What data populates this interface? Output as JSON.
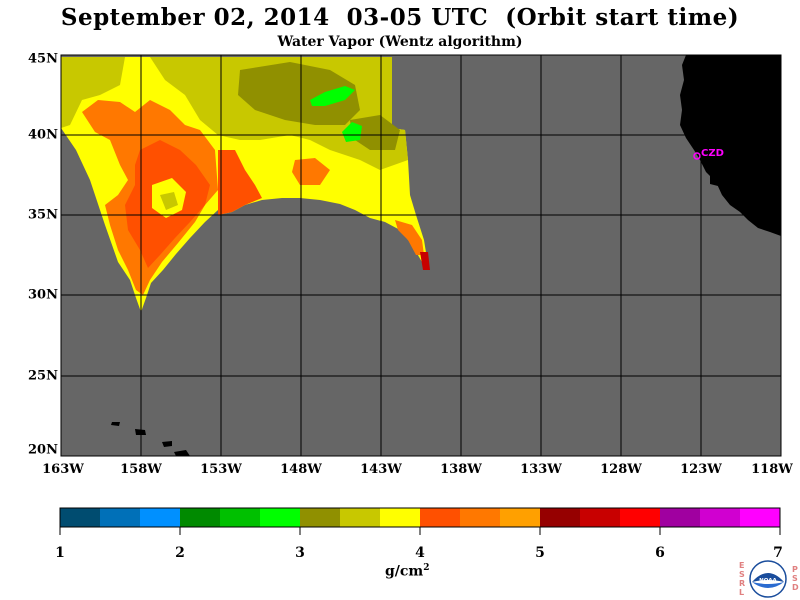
{
  "header": {
    "title": "September 02, 2014  03-05 UTC  (Orbit start time)",
    "subtitle": "Water Vapor (Wentz algorithm)"
  },
  "map": {
    "lat_labels": [
      "45N",
      "40N",
      "35N",
      "30N",
      "25N",
      "20N"
    ],
    "lon_labels": [
      "163W",
      "158W",
      "153W",
      "148W",
      "143W",
      "138W",
      "133W",
      "128W",
      "123W",
      "118W"
    ],
    "lat_range": [
      20,
      45
    ],
    "lon_range": [
      -163,
      -118
    ],
    "ocean_color": "#666666",
    "land_color": "#000000",
    "grid_color": "#000000",
    "station_label": "CZD",
    "station_color": "#ff00ff"
  },
  "colorbar": {
    "colors": [
      "#004c70",
      "#0070b8",
      "#0090ff",
      "#008a00",
      "#00c000",
      "#00ff00",
      "#909000",
      "#c8c800",
      "#ffff00",
      "#ff5000",
      "#ff7800",
      "#ffa000",
      "#960000",
      "#c80000",
      "#ff0000",
      "#a000a0",
      "#d000d0",
      "#ff00ff"
    ],
    "ticks": [
      "1",
      "2",
      "3",
      "4",
      "5",
      "6",
      "7"
    ],
    "units": "g/cm",
    "units_sup": "2"
  },
  "logo": {
    "left_letters": [
      "E",
      "S",
      "R",
      "L"
    ],
    "right_letters": [
      "P",
      "S",
      "D"
    ],
    "center_text": "NOAA"
  }
}
